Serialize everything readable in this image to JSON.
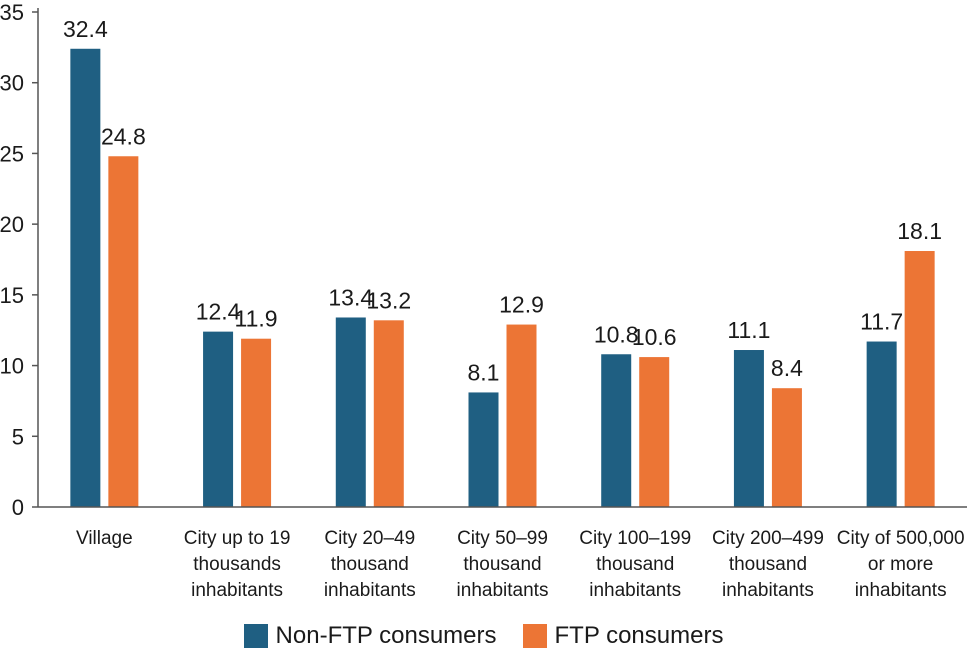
{
  "chart_data": {
    "type": "bar",
    "categories": [
      [
        "Village"
      ],
      [
        "City up to 19",
        "thousands",
        "inhabitants"
      ],
      [
        "City 20–49",
        "thousand",
        "inhabitants"
      ],
      [
        "City 50–99",
        "thousand",
        "inhabitants"
      ],
      [
        "City 100–199",
        "thousand",
        "inhabitants"
      ],
      [
        "City 200–499",
        "thousand",
        "inhabitants"
      ],
      [
        "City of 500,000",
        "or more",
        "inhabitants"
      ]
    ],
    "series": [
      {
        "name": "Non-FTP consumers",
        "color": "#1f5f82",
        "values": [
          32.4,
          12.4,
          13.4,
          8.1,
          10.8,
          11.1,
          11.7
        ],
        "labels": [
          "32.4",
          "12.4",
          "13.4",
          "8.1",
          "10.8",
          "11.1",
          "11.7"
        ]
      },
      {
        "name": "FTP consumers",
        "color": "#ec7535",
        "values": [
          24.8,
          11.9,
          13.2,
          12.9,
          10.6,
          8.4,
          18.1
        ],
        "labels": [
          "24.8",
          "11.9",
          "13.2",
          "12.9",
          "10.6",
          "8.4",
          "18.1"
        ]
      }
    ],
    "yticks": [
      0,
      5,
      10,
      15,
      20,
      25,
      30,
      35
    ],
    "ylim": [
      0,
      35
    ],
    "grid": false,
    "legend_position": "bottom",
    "title": "",
    "xlabel": "",
    "ylabel": ""
  }
}
